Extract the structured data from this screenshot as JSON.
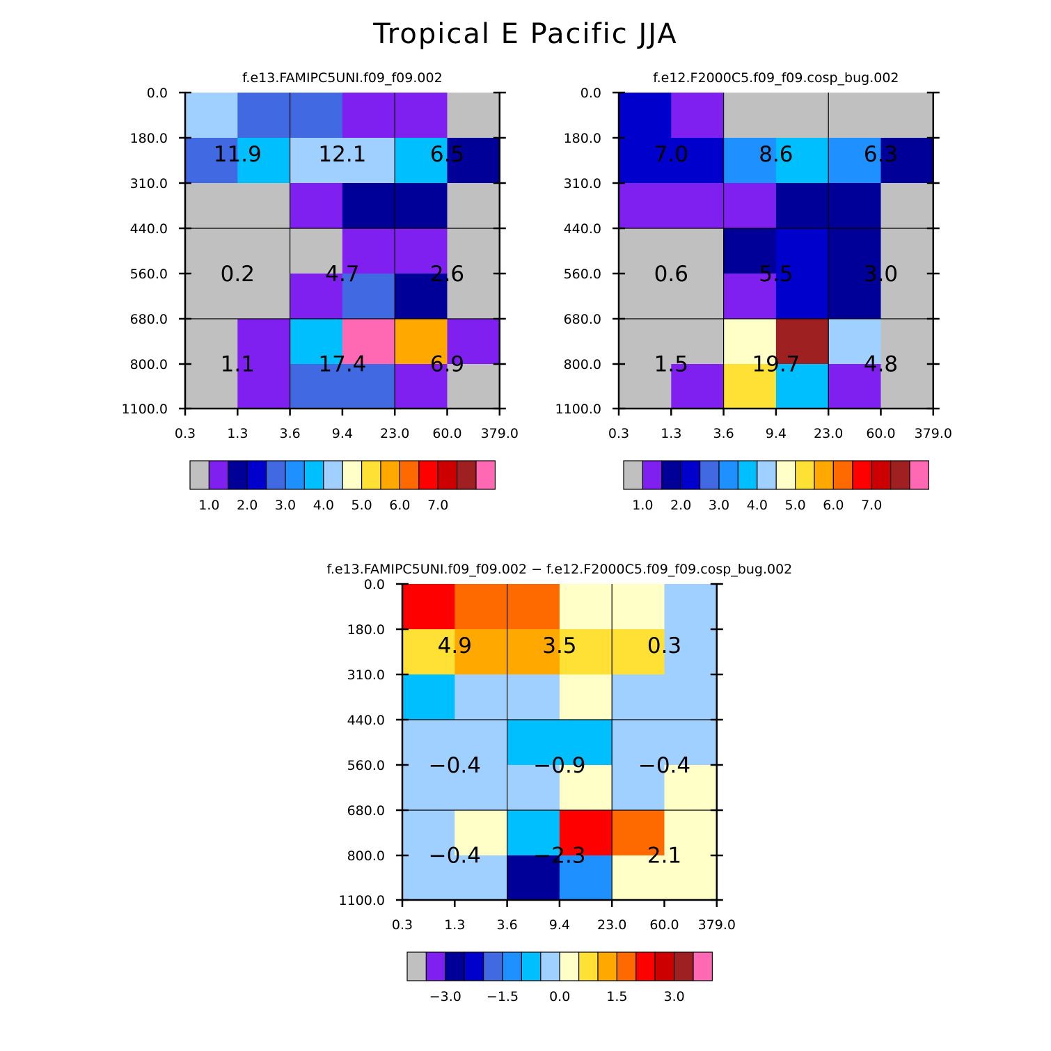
{
  "title": "Tropical E Pacific JJA",
  "colors": {
    "palette": [
      "#c0c0c0",
      "#8020f0",
      "#000099",
      "#0000cc",
      "#4169e1",
      "#1e90ff",
      "#00bfff",
      "#a0d0ff",
      "#ffffc8",
      "#ffe135",
      "#ffa800",
      "#ff6a00",
      "#ff0000",
      "#cc0000",
      "#9e2020",
      "#ff69b4"
    ]
  },
  "chart_data": [
    {
      "type": "heatmap",
      "name": "panel1",
      "title": "f.e13.FAMIPC5UNI.f09_f09.002",
      "x_ticks": [
        "0.3",
        "1.3",
        "3.6",
        "9.4",
        "23.0",
        "60.0",
        "379.0"
      ],
      "y_ticks": [
        "0.0",
        "180.0",
        "310.0",
        "440.0",
        "560.0",
        "680.0",
        "800.0",
        "1100.0"
      ],
      "cells": [
        [
          7,
          4,
          4,
          1,
          1,
          0
        ],
        [
          4,
          6,
          7,
          7,
          6,
          2
        ],
        [
          0,
          0,
          1,
          2,
          2,
          0
        ],
        [
          0,
          0,
          0,
          1,
          1,
          0
        ],
        [
          0,
          0,
          1,
          4,
          2,
          0
        ],
        [
          0,
          1,
          6,
          15,
          10,
          1
        ],
        [
          0,
          1,
          4,
          4,
          1,
          0
        ]
      ],
      "cells_note": "index into colors.palette",
      "box_labels": [
        [
          "11.9",
          "12.1",
          "6.5"
        ],
        [
          "0.2",
          "4.7",
          "2.6"
        ],
        [
          "1.1",
          "17.4",
          "6.9"
        ]
      ],
      "colorbar_labels": [
        "1.0",
        "2.0",
        "3.0",
        "4.0",
        "5.0",
        "6.0",
        "7.0"
      ]
    },
    {
      "type": "heatmap",
      "name": "panel2",
      "title": "f.e12.F2000C5.f09_f09.cosp_bug.002",
      "x_ticks": [
        "0.3",
        "1.3",
        "3.6",
        "9.4",
        "23.0",
        "60.0",
        "379.0"
      ],
      "y_ticks": [
        "0.0",
        "180.0",
        "310.0",
        "440.0",
        "560.0",
        "680.0",
        "800.0",
        "1100.0"
      ],
      "cells": [
        [
          3,
          1,
          0,
          0,
          0,
          0
        ],
        [
          3,
          3,
          5,
          6,
          5,
          2
        ],
        [
          1,
          1,
          1,
          2,
          2,
          0
        ],
        [
          0,
          0,
          2,
          3,
          2,
          0
        ],
        [
          0,
          0,
          1,
          3,
          2,
          0
        ],
        [
          0,
          0,
          8,
          14,
          7,
          0
        ],
        [
          0,
          1,
          9,
          6,
          1,
          0
        ]
      ],
      "cells_note": "index into colors.palette",
      "box_labels": [
        [
          "7.0",
          "8.6",
          "6.3"
        ],
        [
          "0.6",
          "5.5",
          "3.0"
        ],
        [
          "1.5",
          "19.7",
          "4.8"
        ]
      ],
      "colorbar_labels": [
        "1.0",
        "2.0",
        "3.0",
        "4.0",
        "5.0",
        "6.0",
        "7.0"
      ]
    },
    {
      "type": "heatmap",
      "name": "panel3",
      "title": "f.e13.FAMIPC5UNI.f09_f09.002 − f.e12.F2000C5.f09_f09.cosp_bug.002",
      "x_ticks": [
        "0.3",
        "1.3",
        "3.6",
        "9.4",
        "23.0",
        "60.0",
        "379.0"
      ],
      "y_ticks": [
        "0.0",
        "180.0",
        "310.0",
        "440.0",
        "560.0",
        "680.0",
        "800.0",
        "1100.0"
      ],
      "cells": [
        [
          12,
          11,
          11,
          8,
          8,
          7
        ],
        [
          9,
          10,
          10,
          9,
          9,
          7
        ],
        [
          6,
          7,
          7,
          8,
          7,
          7
        ],
        [
          7,
          7,
          6,
          6,
          7,
          7
        ],
        [
          7,
          7,
          7,
          8,
          7,
          8
        ],
        [
          7,
          8,
          6,
          12,
          11,
          8
        ],
        [
          7,
          7,
          2,
          5,
          8,
          8
        ]
      ],
      "cells_note": "index into colors.palette",
      "box_labels": [
        [
          "4.9",
          "3.5",
          "0.3"
        ],
        [
          "−0.4",
          "−0.9",
          "−0.4"
        ],
        [
          "−0.4",
          "−2.3",
          "2.1"
        ]
      ],
      "colorbar_labels": [
        "−3.0",
        "−1.5",
        "0.0",
        "1.5",
        "3.0"
      ]
    }
  ]
}
